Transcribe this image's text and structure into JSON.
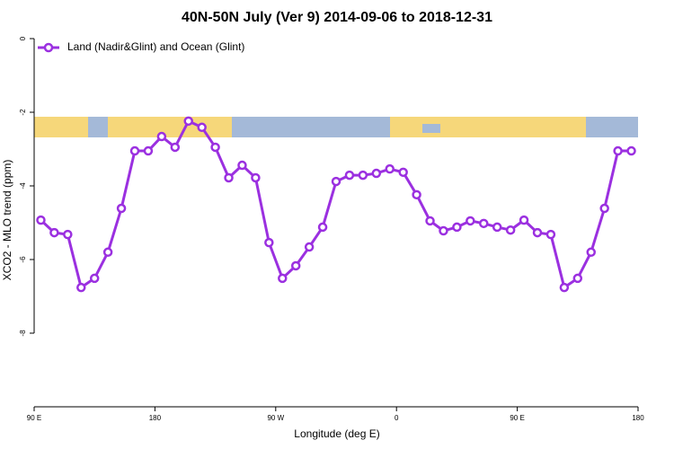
{
  "chart_data": {
    "type": "line",
    "title": "40N-50N July (Ver 9)   2014-09-06 to 2018-12-31",
    "x_label": "Longitude (deg E)",
    "y_label": "XCO2 - MLO trend (ppm)",
    "x": [
      95,
      105,
      115,
      125,
      135,
      145,
      155,
      165,
      175,
      185,
      195,
      205,
      215,
      225,
      235,
      245,
      255,
      265,
      275,
      285,
      295,
      305,
      315,
      325,
      335,
      345,
      355,
      365,
      375,
      385,
      395,
      405,
      415,
      425,
      435,
      445,
      455,
      465,
      475,
      485,
      495,
      505,
      515,
      525,
      535
    ],
    "series": [
      {
        "name": "Land (Nadir&Glint) and Ocean (Glint)",
        "color": "#9b30e0",
        "values": [
          -4.93,
          -5.27,
          -5.32,
          -6.76,
          -6.51,
          -5.8,
          -4.61,
          -3.05,
          -3.05,
          -2.66,
          -2.95,
          -2.24,
          -2.41,
          -2.95,
          -3.78,
          -3.44,
          -3.78,
          -5.54,
          -6.51,
          -6.17,
          -5.66,
          -5.12,
          -3.88,
          -3.71,
          -3.71,
          -3.66,
          -3.54,
          -3.63,
          -4.24,
          -4.95,
          -5.22,
          -5.12,
          -4.95,
          -5.02,
          -5.12,
          -5.2,
          -4.93,
          -5.27,
          -5.32,
          -6.76,
          -6.51,
          -5.8,
          -4.61,
          -3.05,
          -3.05
        ]
      }
    ],
    "xlim": [
      90,
      540
    ],
    "xticks": [
      {
        "value": 90,
        "label": "90 E"
      },
      180,
      {
        "value": 270,
        "label": "90 W"
      },
      {
        "value": 360,
        "label": "0"
      },
      {
        "value": 450,
        "label": "90 E"
      },
      {
        "value": 540,
        "label": "180"
      }
    ],
    "ylim": [
      -10,
      0
    ],
    "yticks": [
      0,
      -2,
      -4,
      -6,
      -8
    ],
    "legend": "top-left"
  }
}
